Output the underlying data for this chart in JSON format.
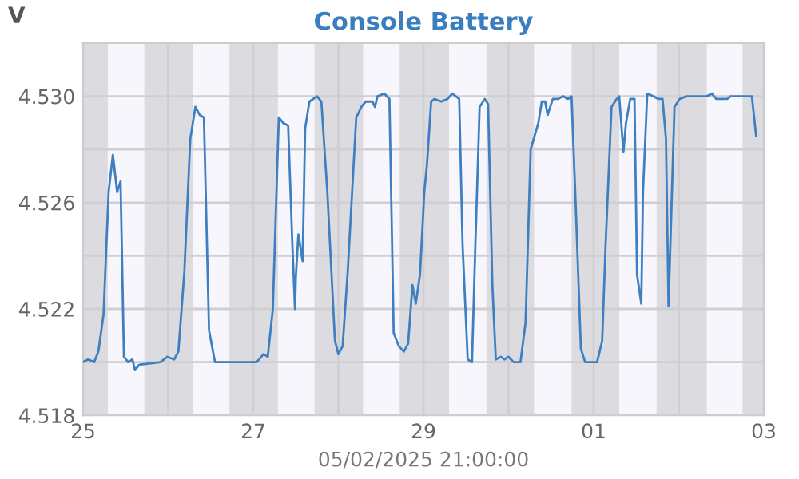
{
  "chart_data": {
    "type": "line",
    "title": "Console Battery",
    "ylabel": "V",
    "xlabel": "05/02/2025 21:00:00",
    "x": [
      "2025-04-25T00:00",
      "2025-04-25T01:26",
      "2025-04-25T03:07",
      "2025-04-25T04:19",
      "2025-04-25T05:46",
      "2025-04-25T07:12",
      "2025-04-25T08:24",
      "2025-04-25T09:36",
      "2025-04-25T10:34",
      "2025-04-25T11:31",
      "2025-04-25T12:43",
      "2025-04-25T13:55",
      "2025-04-25T14:38",
      "2025-04-25T15:50",
      "2025-04-25T21:50",
      "2025-04-25T23:46",
      "2025-04-26T01:41",
      "2025-04-26T02:53",
      "2025-04-26T04:34",
      "2025-04-26T06:14",
      "2025-04-26T07:41",
      "2025-04-26T08:53",
      "2025-04-26T10:05",
      "2025-04-26T11:31",
      "2025-04-26T13:12",
      "2025-04-26T14:24",
      "2025-04-27T00:58",
      "2025-04-27T02:53",
      "2025-04-27T04:05",
      "2025-04-27T05:31",
      "2025-04-27T07:12",
      "2025-04-27T08:24",
      "2025-04-27T09:50",
      "2025-04-27T11:02",
      "2025-04-27T11:46",
      "2025-04-27T12:00",
      "2025-04-27T12:43",
      "2025-04-27T13:55",
      "2025-04-27T14:38",
      "2025-04-27T15:50",
      "2025-04-27T18:00",
      "2025-04-27T19:12",
      "2025-04-27T20:53",
      "2025-04-27T23:02",
      "2025-04-28T00:00",
      "2025-04-28T01:12",
      "2025-04-28T02:38",
      "2025-04-28T05:02",
      "2025-04-28T06:29",
      "2025-04-28T07:41",
      "2025-04-28T09:36",
      "2025-04-28T10:19",
      "2025-04-28T11:02",
      "2025-04-28T12:58",
      "2025-04-28T14:24",
      "2025-04-28T15:36",
      "2025-04-28T17:02",
      "2025-04-28T18:29",
      "2025-04-28T19:41",
      "2025-04-28T20:53",
      "2025-04-28T21:50",
      "2025-04-28T23:02",
      "2025-04-29T00:14",
      "2025-04-29T00:58",
      "2025-04-29T02:10",
      "2025-04-29T03:07",
      "2025-04-29T05:02",
      "2025-04-29T06:43",
      "2025-04-29T08:10",
      "2025-04-29T10:05",
      "2025-04-29T11:02",
      "2025-04-29T12:29",
      "2025-04-29T13:41",
      "2025-04-29T14:38",
      "2025-04-29T15:50",
      "2025-04-29T17:17",
      "2025-04-29T18:14",
      "2025-04-29T19:26",
      "2025-04-29T20:24",
      "2025-04-29T21:50",
      "2025-04-29T22:48",
      "2025-04-30T00:00",
      "2025-04-30T01:26",
      "2025-04-30T03:22",
      "2025-04-30T04:48",
      "2025-04-30T06:14",
      "2025-04-30T08:24",
      "2025-04-30T09:22",
      "2025-04-30T10:19",
      "2025-04-30T11:02",
      "2025-04-30T12:29",
      "2025-04-30T13:55",
      "2025-04-30T15:22",
      "2025-04-30T16:48",
      "2025-04-30T17:46",
      "2025-04-30T18:58",
      "2025-04-30T20:24",
      "2025-04-30T21:36",
      "2025-05-01T00:58",
      "2025-05-01T02:24",
      "2025-05-01T03:22",
      "2025-05-01T05:02",
      "2025-05-01T06:29",
      "2025-05-01T07:12",
      "2025-05-01T08:24",
      "2025-05-01T09:07",
      "2025-05-01T10:19",
      "2025-05-01T11:31",
      "2025-05-01T12:14",
      "2025-05-01T13:26",
      "2025-05-01T13:55",
      "2025-05-01T15:07",
      "2025-05-01T16:48",
      "2025-05-01T18:14",
      "2025-05-01T19:26",
      "2025-05-01T20:24",
      "2025-05-01T21:07",
      "2025-05-01T22:05",
      "2025-05-01T22:48",
      "2025-05-02T00:14",
      "2025-05-02T02:10",
      "2025-05-02T07:55",
      "2025-05-02T09:22",
      "2025-05-02T10:34",
      "2025-05-02T12:00",
      "2025-05-02T13:41",
      "2025-05-02T14:38",
      "2025-05-02T20:38",
      "2025-05-02T21:50"
    ],
    "series": [
      {
        "color": "#3d7fc1",
        "values": [
          4.52,
          4.5201,
          4.52,
          4.5204,
          4.5218,
          4.5264,
          4.5278,
          4.5264,
          4.5268,
          4.5202,
          4.52,
          4.5201,
          4.5197,
          4.5199,
          4.52,
          4.5202,
          4.5201,
          4.5204,
          4.5234,
          4.5284,
          4.5296,
          4.5293,
          4.5292,
          4.5212,
          4.52,
          4.52,
          4.52,
          4.5203,
          4.5202,
          4.522,
          4.5292,
          4.529,
          4.5289,
          4.5244,
          4.522,
          4.5232,
          4.5248,
          4.5238,
          4.5288,
          4.5298,
          4.53,
          4.5298,
          4.5264,
          4.5208,
          4.5203,
          4.5206,
          4.5234,
          4.5292,
          4.5296,
          4.5298,
          4.5298,
          4.5296,
          4.53,
          4.5301,
          4.5299,
          4.5211,
          4.5206,
          4.5204,
          4.5207,
          4.5229,
          4.5222,
          4.5233,
          4.5264,
          4.5274,
          4.5298,
          4.5299,
          4.5298,
          4.5299,
          4.5301,
          4.5299,
          4.5244,
          4.5201,
          4.52,
          4.5244,
          4.5296,
          4.5299,
          4.5297,
          4.5229,
          4.5201,
          4.5202,
          4.5201,
          4.5202,
          4.52,
          4.52,
          4.5215,
          4.528,
          4.529,
          4.5298,
          4.5298,
          4.5293,
          4.5299,
          4.5299,
          4.53,
          4.5299,
          4.53,
          4.5258,
          4.5205,
          4.52,
          4.52,
          4.5208,
          4.5244,
          4.5296,
          4.5299,
          4.53,
          4.5279,
          4.529,
          4.5299,
          4.5299,
          4.5233,
          4.5222,
          4.5264,
          4.5301,
          4.53,
          4.5299,
          4.5299,
          4.5284,
          4.5221,
          4.5264,
          4.5296,
          4.5299,
          4.53,
          4.53,
          4.5301,
          4.5299,
          4.5299,
          4.5299,
          4.53,
          4.53,
          4.5285
        ]
      }
    ],
    "xlim": [
      "2025-04-25",
      "2025-05-03"
    ],
    "xticks": [
      {
        "value": "2025-04-25",
        "label": "25"
      },
      {
        "value": "2025-04-26",
        "label": null
      },
      {
        "value": "2025-04-27",
        "label": "27"
      },
      {
        "value": "2025-04-28",
        "label": null
      },
      {
        "value": "2025-04-29",
        "label": "29"
      },
      {
        "value": "2025-04-30",
        "label": null
      },
      {
        "value": "2025-05-01",
        "label": "01"
      },
      {
        "value": "2025-05-02",
        "label": null
      },
      {
        "value": "2025-05-03",
        "label": "03"
      }
    ],
    "ylim": [
      4.518,
      4.532
    ],
    "yticks": [
      4.518,
      {
        "value": 4.52,
        "label": null
      },
      4.522,
      {
        "value": 4.524,
        "label": null
      },
      4.526,
      {
        "value": 4.528,
        "label": null
      },
      {
        "value": 4.53,
        "label": "4.530"
      }
    ],
    "grid": true,
    "marker": "none",
    "line_style": "solid",
    "bands": [
      {
        "axis": "x",
        "from": "2025-04-25T06:58",
        "to": "2025-04-25T17:17",
        "color": "#f8f6fd"
      },
      {
        "axis": "x",
        "from": "2025-04-26T06:58",
        "to": "2025-04-26T17:17",
        "color": "#f8f6fd"
      },
      {
        "axis": "x",
        "from": "2025-04-27T06:58",
        "to": "2025-04-27T17:17",
        "color": "#f8f6fd"
      },
      {
        "axis": "x",
        "from": "2025-04-28T06:58",
        "to": "2025-04-28T17:17",
        "color": "#f8f6fd"
      },
      {
        "axis": "x",
        "from": "2025-04-29T07:12",
        "to": "2025-04-29T17:46",
        "color": "#f8f6fd"
      },
      {
        "axis": "x",
        "from": "2025-04-30T07:12",
        "to": "2025-04-30T17:46",
        "color": "#f8f6fd"
      },
      {
        "axis": "x",
        "from": "2025-05-01T07:12",
        "to": "2025-05-01T17:46",
        "color": "#f8f6fd"
      },
      {
        "axis": "x",
        "from": "2025-05-02T07:55",
        "to": "2025-05-02T18:00",
        "color": "#f8f6fd"
      }
    ]
  }
}
